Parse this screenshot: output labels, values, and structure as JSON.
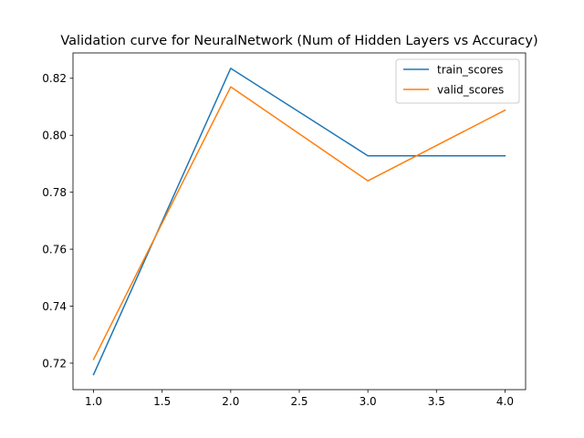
{
  "chart_data": {
    "type": "line",
    "title": "Validation curve for NeuralNetwork (Num of Hidden Layers vs Accuracy)",
    "xlabel": "",
    "ylabel": "",
    "x": [
      1,
      2,
      3,
      4
    ],
    "series": [
      {
        "name": "train_scores",
        "color": "#1f77b4",
        "values": [
          0.716,
          0.8235,
          0.7928,
          0.7928
        ]
      },
      {
        "name": "valid_scores",
        "color": "#ff7f0e",
        "values": [
          0.7213,
          0.817,
          0.784,
          0.8088
        ]
      }
    ],
    "xlim": [
      0.85,
      4.15
    ],
    "ylim": [
      0.7107,
      0.8289
    ],
    "x_ticks": [
      1.0,
      1.5,
      2.0,
      2.5,
      3.0,
      3.5,
      4.0
    ],
    "x_tick_labels": [
      "1.0",
      "1.5",
      "2.0",
      "2.5",
      "3.0",
      "3.5",
      "4.0"
    ],
    "y_ticks": [
      0.72,
      0.74,
      0.76,
      0.78,
      0.8,
      0.82
    ],
    "y_tick_labels": [
      "0.72",
      "0.74",
      "0.76",
      "0.78",
      "0.80",
      "0.82"
    ],
    "grid": false,
    "legend_position": "upper right"
  }
}
